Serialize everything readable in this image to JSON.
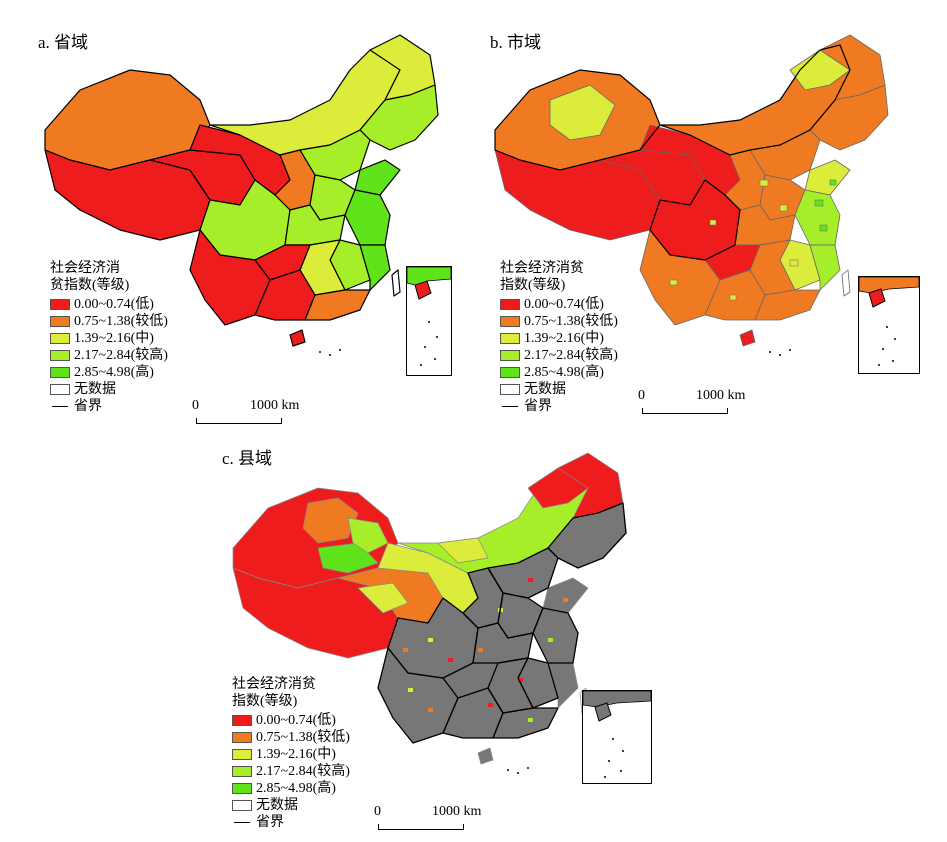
{
  "panels": {
    "a": {
      "title": "a. 省域"
    },
    "b": {
      "title": "b. 市域"
    },
    "c": {
      "title": "c. 县域"
    }
  },
  "legend": {
    "title_a": "社会经济消\n贫指数(等级)",
    "title_b": "社会经济消贫\n指数(等级)",
    "title_c": "社会经济消贫\n指数(等级)",
    "classes": [
      {
        "label": "0.00~0.74(低)",
        "color": "#ee1c1c"
      },
      {
        "label": "0.75~1.38(较低)",
        "color": "#f07a22"
      },
      {
        "label": "1.39~2.16(中)",
        "color": "#dcec3a"
      },
      {
        "label": "2.17~2.84(较高)",
        "color": "#a6ee2a"
      },
      {
        "label": "2.85~4.98(高)",
        "color": "#5fe31b"
      }
    ],
    "no_data": {
      "label": "无数据",
      "color": "#ffffff"
    },
    "boundary": {
      "label": "省界"
    }
  },
  "scalebar": {
    "zero": "0",
    "max_label": "1000 km"
  },
  "colors": {
    "no_data_gray": "#777777",
    "boundary": "#000000",
    "inner_line": "#888888"
  }
}
